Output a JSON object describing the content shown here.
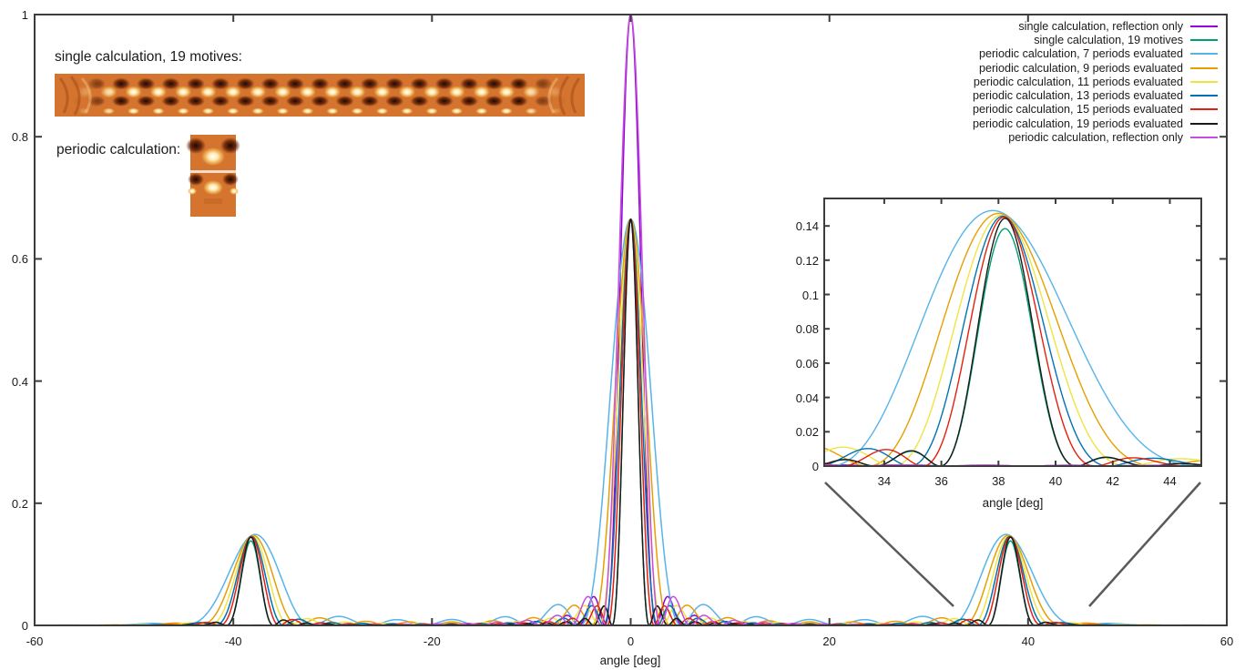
{
  "figure": {
    "background": "#ffffff",
    "axis_color": "#3c3c3c",
    "callout_color": "#5a5a5a",
    "annotations": {
      "single_heatmap_label": "single calculation, 19 motives:",
      "periodic_heatmap_label": "periodic calculation:"
    }
  },
  "legend": {
    "position": "top-right",
    "items": [
      {
        "label": "single calculation, reflection only",
        "color": "#9400d3"
      },
      {
        "label": "single calculation, 19 motives",
        "color": "#009e73"
      },
      {
        "label": "periodic calculation, 7 periods evaluated",
        "color": "#56b4e9"
      },
      {
        "label": "periodic calculation, 9 periods evaluated",
        "color": "#e69f00"
      },
      {
        "label": "periodic calculation, 11 periods evaluated",
        "color": "#f0e442"
      },
      {
        "label": "periodic calculation, 13 periods evaluated",
        "color": "#0072b2"
      },
      {
        "label": "periodic calculation, 15 periods evaluated",
        "color": "#e51e10"
      },
      {
        "label": "periodic calculation, 19 periods evaluated",
        "color": "#1a1a1a"
      },
      {
        "label": "periodic calculation, reflection only",
        "color": "#c44fdd"
      }
    ]
  },
  "chart_data": [
    {
      "type": "line",
      "role": "main",
      "title": "",
      "xlabel": "angle [deg]",
      "ylabel": "",
      "xlim": [
        -60,
        60
      ],
      "ylim": [
        0,
        1
      ],
      "xticks": [
        -60,
        -40,
        -20,
        0,
        20,
        40,
        60
      ],
      "yticks": [
        0,
        0.2,
        0.4,
        0.6,
        0.8,
        1
      ],
      "xtick_labels": [
        "-60",
        "-40",
        "-20",
        "0",
        "20",
        "40",
        "60"
      ],
      "ytick_labels": [
        "0",
        "0.2",
        "0.4",
        "0.6",
        "0.8",
        "1"
      ],
      "grid": false,
      "legend_position": "top-right-inside",
      "series": [
        {
          "name": "single calculation, reflection only",
          "color": "#9400d3",
          "model": "sinc2",
          "peak": 1.0,
          "peak_angle_deg": 0,
          "first_zero_deg": 2.6
        },
        {
          "name": "single calculation, 19 motives",
          "color": "#009e73",
          "model": "grating",
          "n_periods": 19,
          "center_peak": 0.665,
          "side_peak": 0.138,
          "side_order_angle_deg": 38.3
        },
        {
          "name": "periodic calculation, 7 periods evaluated",
          "color": "#56b4e9",
          "model": "grating",
          "n_periods": 7,
          "center_peak": 0.665,
          "side_peak": 0.146,
          "side_order_angle_deg": 38.3
        },
        {
          "name": "periodic calculation, 9 periods evaluated",
          "color": "#e69f00",
          "model": "grating",
          "n_periods": 9,
          "center_peak": 0.665,
          "side_peak": 0.1455,
          "side_order_angle_deg": 38.3
        },
        {
          "name": "periodic calculation, 11 periods evaluated",
          "color": "#f0e442",
          "model": "grating",
          "n_periods": 11,
          "center_peak": 0.665,
          "side_peak": 0.145,
          "side_order_angle_deg": 38.3
        },
        {
          "name": "periodic calculation, 13 periods evaluated",
          "color": "#0072b2",
          "model": "grating",
          "n_periods": 13,
          "center_peak": 0.665,
          "side_peak": 0.1448,
          "side_order_angle_deg": 38.3
        },
        {
          "name": "periodic calculation, 15 periods evaluated",
          "color": "#e51e10",
          "model": "grating",
          "n_periods": 15,
          "center_peak": 0.665,
          "side_peak": 0.1445,
          "side_order_angle_deg": 38.3
        },
        {
          "name": "periodic calculation, 19 periods evaluated",
          "color": "#1a1a1a",
          "model": "grating",
          "n_periods": 19,
          "center_peak": 0.665,
          "side_peak": 0.144,
          "side_order_angle_deg": 38.3
        },
        {
          "name": "periodic calculation, reflection only",
          "color": "#c44fdd",
          "model": "sinc2",
          "peak": 1.0,
          "peak_angle_deg": 0,
          "first_zero_deg": 3.0
        }
      ],
      "notes": "Diffraction intensity vs angle. Central peak at 0 deg (height 1.0 for reflection-only curves, ~0.665 for others); side diffraction orders at +/-38.3 deg with height ~0.145; fewer evaluated periods give wider peaks."
    },
    {
      "type": "line",
      "role": "inset-zoom-of-right-peak",
      "title": "",
      "xlabel": "angle [deg]",
      "ylabel": "",
      "xlim": [
        31.9,
        45.1
      ],
      "ylim": [
        0,
        0.156
      ],
      "xticks": [
        34,
        36,
        38,
        40,
        42,
        44
      ],
      "yticks": [
        0,
        0.02,
        0.04,
        0.06,
        0.08,
        0.1,
        0.12,
        0.14
      ],
      "xtick_labels": [
        "34",
        "36",
        "38",
        "40",
        "42",
        "44"
      ],
      "ytick_labels": [
        "0",
        "0.02",
        "0.04",
        "0.06",
        "0.08",
        "0.1",
        "0.12",
        "0.14"
      ],
      "grid": false,
      "series_ref": "same as main plot series",
      "notes": "Zoom of the +38.3 deg side peak; peak heights ~0.138-0.146; reflection-only curves are flat at 0 here."
    }
  ]
}
